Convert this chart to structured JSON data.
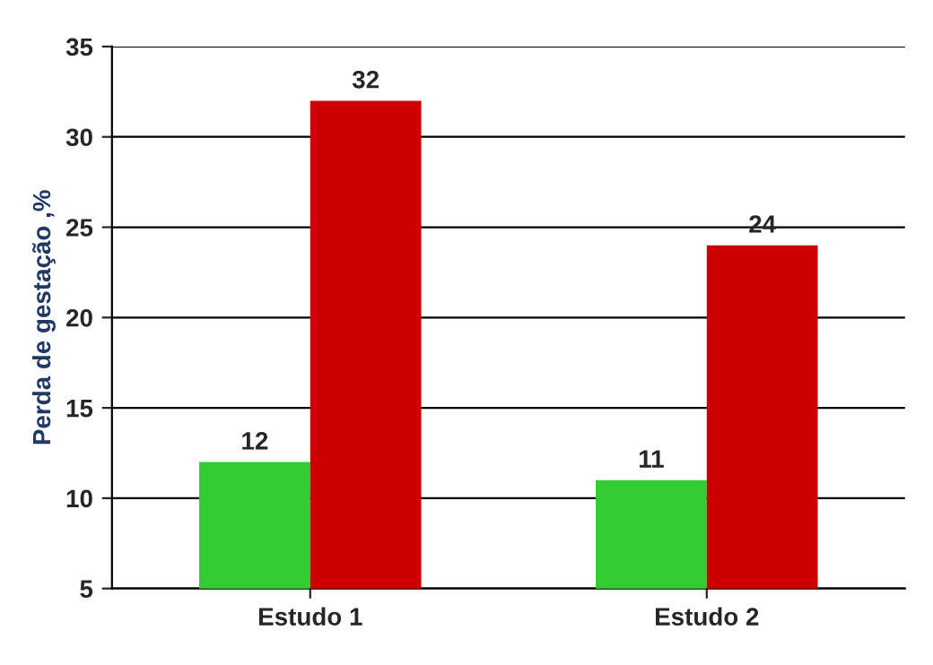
{
  "chart_data": {
    "type": "bar",
    "ylabel": "Perda de gestação ,%",
    "categories": [
      "Estudo 1",
      "Estudo 2"
    ],
    "series": [
      {
        "color": "#33cc33",
        "values": [
          12,
          11
        ]
      },
      {
        "color": "#cc0000",
        "values": [
          32,
          24
        ]
      }
    ],
    "ylim": [
      5,
      35
    ],
    "yticks": [
      5,
      10,
      15,
      20,
      25,
      30,
      35
    ],
    "grid": "y",
    "data_labels": true
  }
}
